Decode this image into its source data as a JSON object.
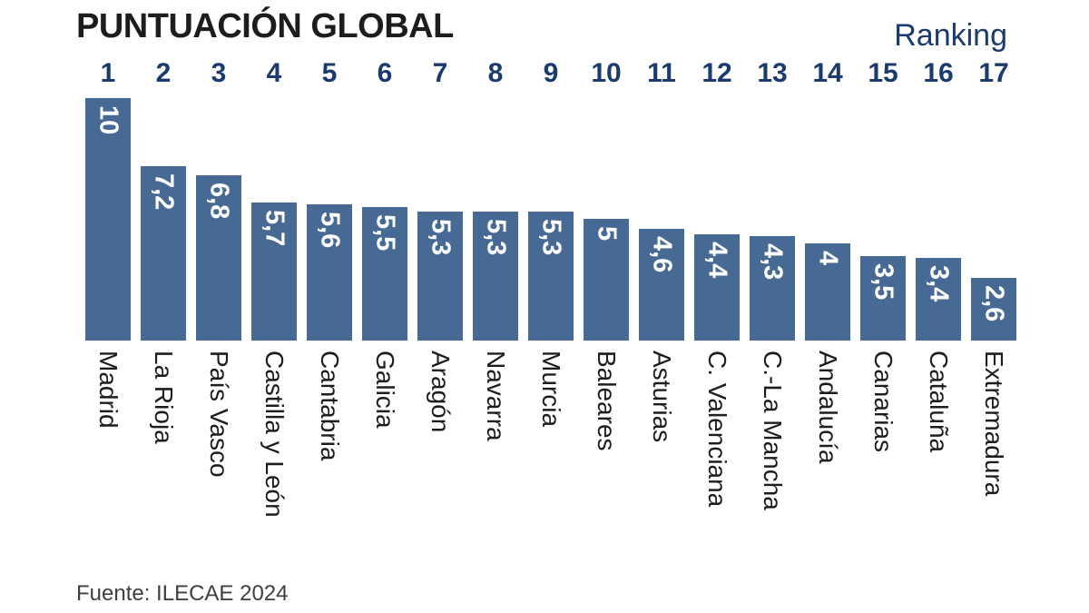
{
  "header": {
    "title": "PUNTUACIÓN GLOBAL",
    "ranking_label": "Ranking"
  },
  "footer": {
    "source": "Fuente: ILECAE 2024"
  },
  "colors": {
    "bar": "#476a94",
    "rank_text": "#1b3a6d",
    "title_text": "#1d1d1b",
    "category_text": "#1d1d1b",
    "value_text": "#ffffff",
    "source_text": "#3f3f3f",
    "background": "#ffffff"
  },
  "chart_data": {
    "type": "bar",
    "title": "PUNTUACIÓN GLOBAL",
    "legend_label": "Ranking",
    "ranks": [
      1,
      2,
      3,
      4,
      5,
      6,
      7,
      8,
      9,
      10,
      11,
      12,
      13,
      14,
      15,
      16,
      17
    ],
    "categories": [
      "Madrid",
      "La Rioja",
      "País Vasco",
      "Castilla y León",
      "Cantabria",
      "Galicia",
      "Aragón",
      "Navarra",
      "Murcia",
      "Baleares",
      "Asturias",
      "C. Valenciana",
      "C.-La Mancha",
      "Andalucía",
      "Canarias",
      "Cataluña",
      "Extremadura"
    ],
    "values": [
      10,
      7.2,
      6.8,
      5.7,
      5.6,
      5.5,
      5.3,
      5.3,
      5.3,
      5,
      4.6,
      4.4,
      4.3,
      4,
      3.5,
      3.4,
      2.6
    ],
    "value_labels": [
      "10",
      "7,2",
      "6,8",
      "5,7",
      "5,6",
      "5,5",
      "5,3",
      "5,3",
      "5,3",
      "5",
      "4,6",
      "4,4",
      "4,3",
      "4",
      "3,5",
      "3,4",
      "2,6"
    ],
    "ylim": [
      0,
      10
    ],
    "grid": false,
    "legend_position": "top-right",
    "value_label_position": "inside-top-rotated",
    "category_label_rotation": 90,
    "source": "Fuente: ILECAE 2024"
  }
}
